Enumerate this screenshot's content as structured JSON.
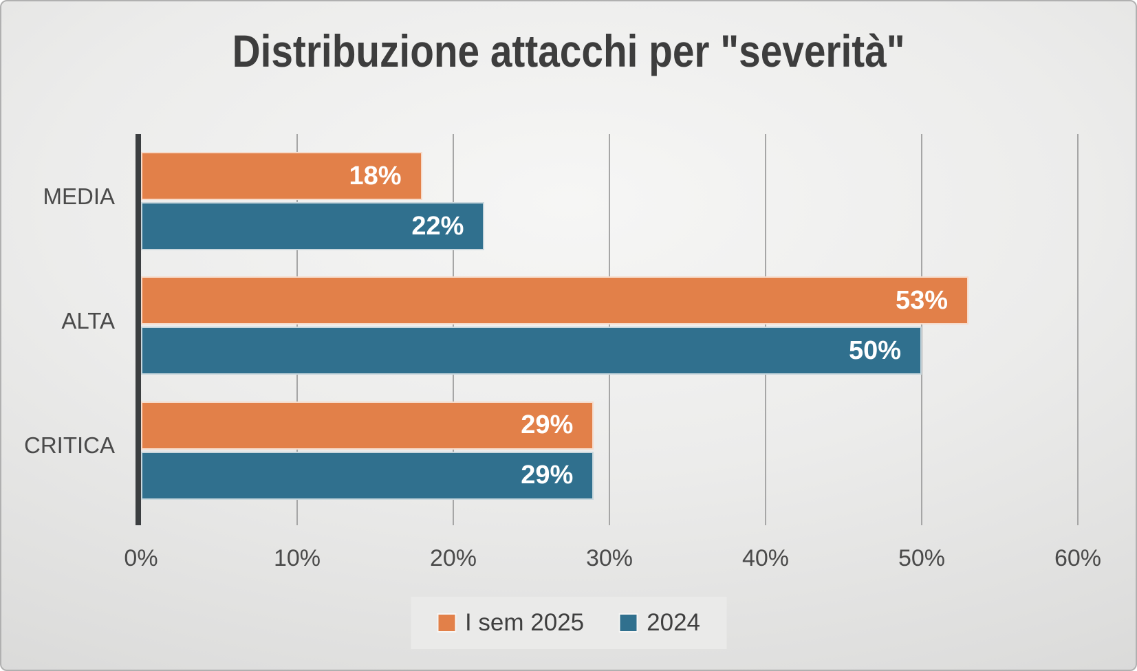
{
  "title": "Distribuzione attacchi per \"severità\"",
  "palette": {
    "series_orange": "#E28049",
    "series_blue": "#30708E",
    "axis_line": "#3B3E40",
    "gridline": "#A6A6A6",
    "title_text": "#3D3D3D",
    "axis_label_text": "#4A4A4A",
    "data_label_text": "#FFFFFF",
    "legend_background": "#EAEAE9",
    "background_center": "#F6F6F5",
    "background_edge": "#CBCBCA"
  },
  "chart_data": {
    "type": "bar",
    "orientation": "horizontal",
    "title": "Distribuzione attacchi per \"severità\"",
    "categories": [
      "MEDIA",
      "ALTA",
      "CRITICA"
    ],
    "series": [
      {
        "name": "I sem 2025",
        "color": "#E28049",
        "values": [
          18,
          53,
          29
        ]
      },
      {
        "name": "2024",
        "color": "#30708E",
        "values": [
          22,
          50,
          29
        ]
      }
    ],
    "value_suffix": "%",
    "xlabel": "",
    "ylabel": "",
    "xlim": [
      0,
      60
    ],
    "xticks": [
      "0%",
      "10%",
      "20%",
      "30%",
      "40%",
      "50%",
      "60%"
    ],
    "grid": true,
    "legend_position": "bottom",
    "data_labels": "inside-end"
  }
}
